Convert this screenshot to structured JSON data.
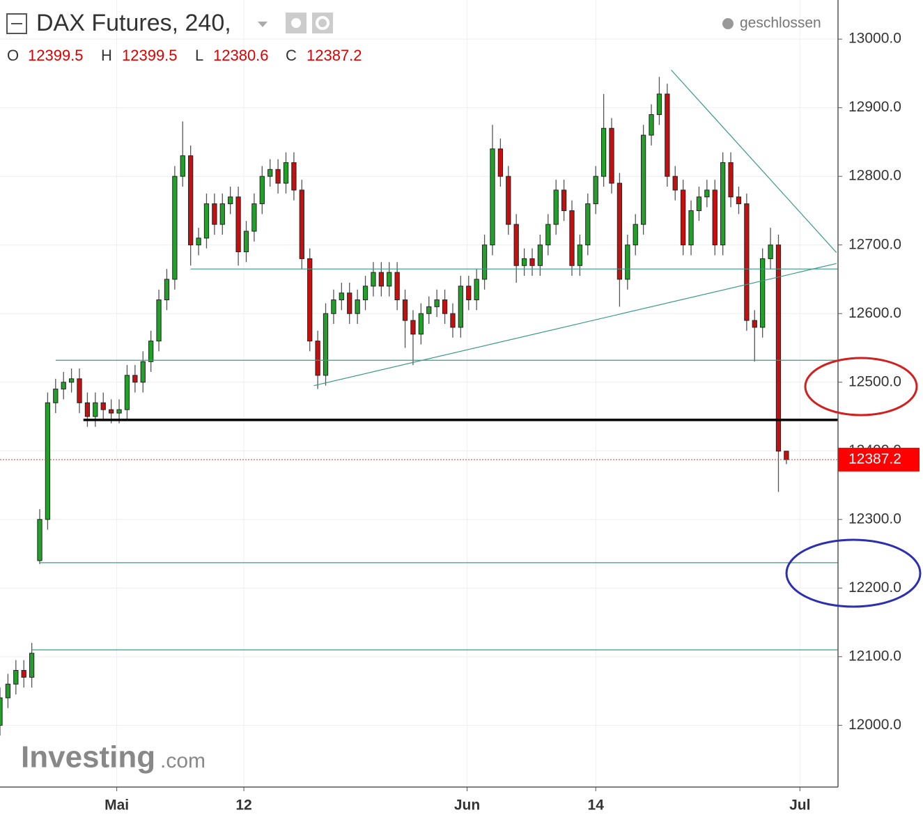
{
  "chart_data": {
    "type": "candlestick",
    "title": "DAX Futures, 240,",
    "status": "geschlossen",
    "ohlc_labels": [
      "O",
      "H",
      "L",
      "C"
    ],
    "watermark": {
      "brand": "Investing",
      "suffix": ".com"
    },
    "up_color": "#22a12a",
    "down_color": "#c80f0f",
    "xlim": [
      0,
      105.5
    ],
    "xticks": [
      {
        "value": 14.7,
        "label": "Mai"
      },
      {
        "value": 30.7,
        "label": "12"
      },
      {
        "value": 58.8,
        "label": "Jun"
      },
      {
        "value": 75,
        "label": "14"
      },
      {
        "value": 100.7,
        "label": "Jul"
      }
    ],
    "ylim": [
      11910,
      13057
    ],
    "yticks": [
      {
        "value": 12000,
        "label": "12000.0"
      },
      {
        "value": 12100,
        "label": "12100.0"
      },
      {
        "value": 12200,
        "label": "12200.0"
      },
      {
        "value": 12300,
        "label": "12300.0"
      },
      {
        "value": 12400,
        "label": "12400.0"
      },
      {
        "value": 12500,
        "label": "12500.0"
      },
      {
        "value": 12600,
        "label": "12600.0"
      },
      {
        "value": 12700,
        "label": "12700.0"
      },
      {
        "value": 12800,
        "label": "12800.0"
      },
      {
        "value": 12900,
        "label": "12900.0"
      },
      {
        "value": 13000,
        "label": "13000.0"
      }
    ],
    "grid": true,
    "open": [
      12000,
      12040,
      12060,
      12080,
      12070,
      12240,
      12300,
      12470,
      12490,
      12500,
      12505,
      12470,
      12450,
      12470,
      12460,
      12455,
      12460,
      12510,
      12500,
      12530,
      12560,
      12620,
      12650,
      12800,
      12830,
      12700,
      12710,
      12760,
      12730,
      12760,
      12770,
      12690,
      12720,
      12760,
      12800,
      12810,
      12790,
      12820,
      12780,
      12680,
      12560,
      12510,
      12600,
      12620,
      12630,
      12600,
      12620,
      12640,
      12660,
      12640,
      12660,
      12620,
      12590,
      12570,
      12600,
      12610,
      12620,
      12600,
      12580,
      12640,
      12620,
      12650,
      12700,
      12840,
      12800,
      12730,
      12670,
      12680,
      12670,
      12700,
      12730,
      12780,
      12750,
      12670,
      12700,
      12760,
      12800,
      12870,
      12790,
      12650,
      12700,
      12730,
      12860,
      12890,
      12920,
      12800,
      12780,
      12700,
      12750,
      12770,
      12780,
      12700,
      12820,
      12770,
      12760,
      12590,
      12580,
      12680,
      12700,
      12399.5
    ],
    "high": [
      12055,
      12075,
      12095,
      12095,
      12120,
      12315,
      12485,
      12505,
      12515,
      12520,
      12520,
      12485,
      12485,
      12485,
      12475,
      12475,
      12525,
      12525,
      12545,
      12575,
      12635,
      12665,
      12815,
      12880,
      12845,
      12725,
      12775,
      12775,
      12775,
      12785,
      12785,
      12735,
      12775,
      12815,
      12825,
      12825,
      12835,
      12835,
      12795,
      12695,
      12575,
      12615,
      12635,
      12645,
      12645,
      12635,
      12655,
      12675,
      12675,
      12675,
      12675,
      12635,
      12605,
      12615,
      12625,
      12635,
      12635,
      12615,
      12655,
      12655,
      12665,
      12715,
      12875,
      12855,
      12815,
      12745,
      12695,
      12695,
      12715,
      12745,
      12795,
      12795,
      12765,
      12715,
      12775,
      12815,
      12920,
      12885,
      12805,
      12715,
      12745,
      12875,
      12905,
      12945,
      12935,
      12815,
      12795,
      12765,
      12785,
      12795,
      12795,
      12835,
      12835,
      12785,
      12775,
      12605,
      12695,
      12725,
      12715,
      12399.5
    ],
    "low": [
      11985,
      12025,
      12045,
      12055,
      12055,
      12235,
      12285,
      12455,
      12475,
      12485,
      12455,
      12435,
      12435,
      12445,
      12440,
      12440,
      12445,
      12485,
      12485,
      12515,
      12545,
      12605,
      12635,
      12785,
      12670,
      12685,
      12695,
      12715,
      12715,
      12745,
      12670,
      12675,
      12705,
      12745,
      12785,
      12775,
      12775,
      12765,
      12665,
      12545,
      12490,
      12495,
      12585,
      12605,
      12585,
      12585,
      12605,
      12625,
      12625,
      12625,
      12605,
      12550,
      12525,
      12555,
      12585,
      12595,
      12585,
      12565,
      12565,
      12605,
      12605,
      12635,
      12685,
      12785,
      12715,
      12645,
      12655,
      12655,
      12655,
      12685,
      12715,
      12735,
      12655,
      12655,
      12685,
      12745,
      12785,
      12775,
      12610,
      12635,
      12685,
      12715,
      12845,
      12875,
      12785,
      12765,
      12685,
      12685,
      12735,
      12755,
      12685,
      12685,
      12755,
      12745,
      12575,
      12530,
      12565,
      12665,
      12340,
      12380.6
    ],
    "close": [
      12040,
      12060,
      12080,
      12070,
      12105,
      12300,
      12470,
      12490,
      12500,
      12505,
      12470,
      12450,
      12470,
      12460,
      12455,
      12460,
      12510,
      12500,
      12530,
      12560,
      12620,
      12650,
      12800,
      12830,
      12700,
      12710,
      12760,
      12730,
      12760,
      12770,
      12690,
      12720,
      12760,
      12800,
      12810,
      12790,
      12820,
      12780,
      12680,
      12560,
      12510,
      12600,
      12620,
      12630,
      12600,
      12620,
      12640,
      12660,
      12640,
      12660,
      12620,
      12590,
      12570,
      12600,
      12610,
      12620,
      12600,
      12580,
      12640,
      12620,
      12650,
      12700,
      12840,
      12800,
      12730,
      12670,
      12680,
      12670,
      12700,
      12730,
      12780,
      12750,
      12670,
      12700,
      12760,
      12800,
      12870,
      12790,
      12650,
      12700,
      12730,
      12860,
      12890,
      12920,
      12800,
      12780,
      12700,
      12750,
      12770,
      12780,
      12700,
      12820,
      12770,
      12760,
      12590,
      12580,
      12680,
      12700,
      12399.5,
      12387.2
    ],
    "levels": [
      {
        "price": 12665,
        "from": 24,
        "color": "#3a9a86"
      },
      {
        "price": 12532,
        "from": 7,
        "color": "#3a9a86"
      },
      {
        "price": 12237,
        "from": 5,
        "color": "#3a9a86"
      },
      {
        "price": 12110,
        "from": 4,
        "color": "#3a9a86"
      },
      {
        "price": 12445,
        "from": 10.5,
        "color": "#000000"
      }
    ],
    "trendlines": [
      {
        "x": [
          39.5,
          105.3
        ],
        "y": [
          12495,
          12673
        ],
        "color": "#3a9a86"
      },
      {
        "x": [
          84.5,
          105.3
        ],
        "y": [
          12955,
          12689
        ],
        "color": "#3a9a86"
      }
    ]
  }
}
